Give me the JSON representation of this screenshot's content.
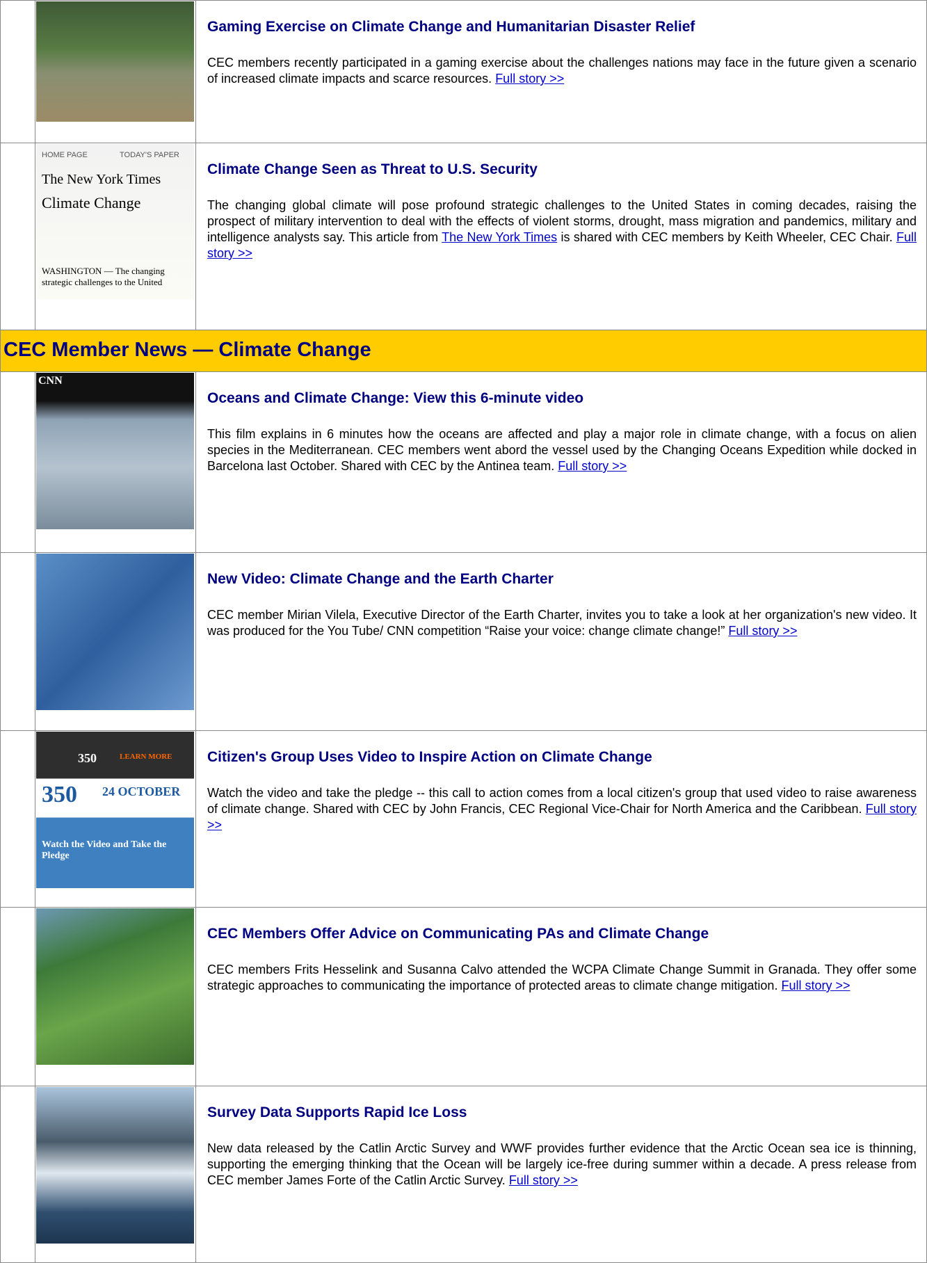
{
  "items_top": [
    {
      "title": "Gaming Exercise on Climate Change and Humanitarian Disaster Relief",
      "body": [
        {
          "text": "CEC members recently participated in a gaming exercise about the challenges nations may face in the future given a scenario of increased climate impacts and scarce resources. "
        },
        {
          "link": "Full story >>"
        }
      ]
    },
    {
      "title": "Climate Change Seen as Threat to U.S. Security",
      "thumb_text": [
        "HOME PAGE",
        "TODAY'S PAPER",
        "The New York Times",
        "Climate Change",
        "WASHINGTON — The changing strategic challenges to the United"
      ],
      "body": [
        {
          "text": "The changing global climate will pose profound strategic challenges to the United States in coming decades, raising the prospect of military intervention to deal with the effects of violent storms, drought, mass migration and pandemics, military and intelligence analysts say. This article from "
        },
        {
          "link": "The New York Times"
        },
        {
          "text": " is shared with CEC members by Keith Wheeler, CEC Chair. "
        },
        {
          "link": "Full story >>"
        }
      ]
    }
  ],
  "section_header": "CEC Member News — Climate Change",
  "items": [
    {
      "title": "Oceans and Climate Change: View this 6-minute video",
      "thumb_text": [
        "CNN"
      ],
      "body": [
        {
          "text": "This film explains in 6 minutes how the oceans are affected and play a major role in climate change, with a focus on alien species in the Mediterranean. CEC members went abord the vessel used by the Changing Oceans Expedition while docked in Barcelona last October. Shared with CEC by the Antinea team. "
        },
        {
          "link": "Full story >>"
        }
      ]
    },
    {
      "title": "New Video: Climate Change and the Earth Charter",
      "body": [
        {
          "text": "CEC member Mirian Vilela, Executive Director of the Earth Charter, invites you to take a look at her organization's new video. It was produced for the You Tube/ CNN competition “Raise your voice: change climate change!” "
        },
        {
          "link": "Full story >>"
        }
      ]
    },
    {
      "title": "Citizen's Group Uses Video to Inspire Action on Climate Change",
      "thumb_text": [
        "350",
        "LEARN MORE",
        "350",
        "24 OCTOBER",
        "Watch the Video and Take the Pledge"
      ],
      "body": [
        {
          "text": "Watch the video and take the pledge -- this call to action comes from a local citizen's group that used video to raise awareness of climate change. Shared with CEC by John Francis, CEC Regional Vice-Chair for North America and the Caribbean. "
        },
        {
          "link": "Full story >>"
        }
      ]
    },
    {
      "title": "CEC Members Offer Advice on Communicating PAs and Climate Change",
      "body": [
        {
          "text": "CEC members Frits Hesselink and Susanna Calvo attended the WCPA Climate Change Summit in Granada. They offer some strategic approaches to communicating the importance of protected areas to climate change mitigation. "
        },
        {
          "link": "Full story >>"
        }
      ]
    },
    {
      "title": "Survey Data Supports Rapid Ice Loss",
      "body": [
        {
          "text": "New data released by the Catlin Arctic Survey and WWF provides further evidence that the Arctic Ocean sea ice is thinning, supporting the emerging thinking that the Ocean will be largely ice-free during summer within a decade. A press release from CEC member James Forte of the Catlin Arctic Survey. "
        },
        {
          "link": "Full story >>"
        }
      ]
    }
  ]
}
